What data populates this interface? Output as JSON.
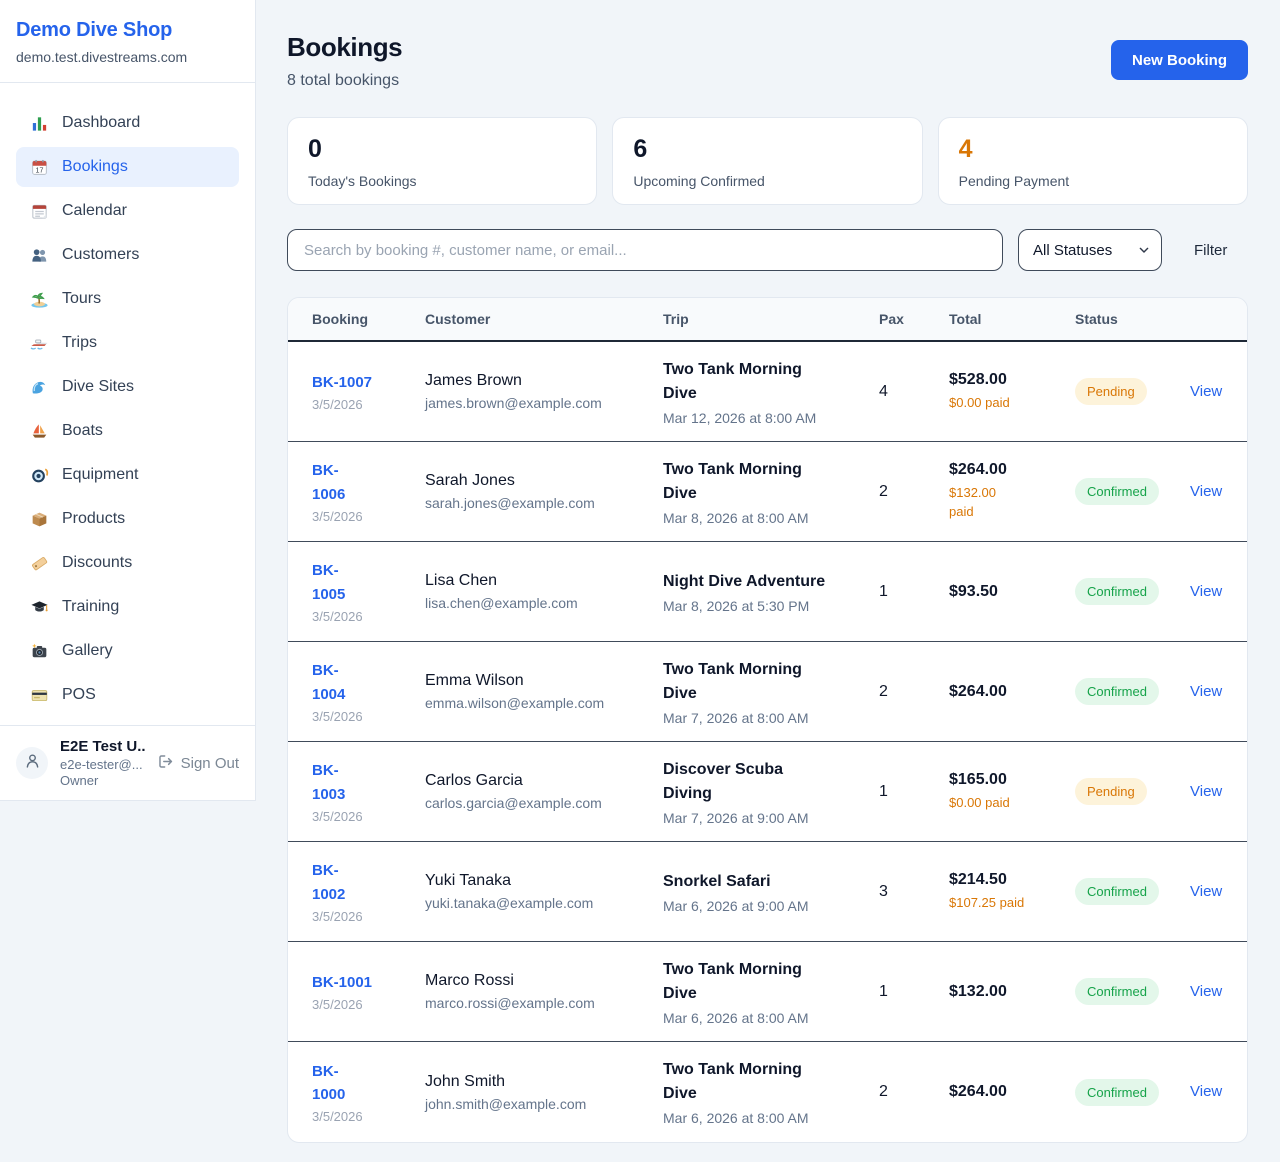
{
  "app": {
    "name": "Demo Dive Shop",
    "domain": "demo.test.divestreams.com"
  },
  "sidebar": {
    "items": [
      {
        "label": "Dashboard",
        "icon": "bar-chart",
        "active": false
      },
      {
        "label": "Bookings",
        "icon": "calendar-date",
        "active": true
      },
      {
        "label": "Calendar",
        "icon": "tearoff-calendar",
        "active": false
      },
      {
        "label": "Customers",
        "icon": "people",
        "active": false
      },
      {
        "label": "Tours",
        "icon": "island",
        "active": false
      },
      {
        "label": "Trips",
        "icon": "speedboat",
        "active": false
      },
      {
        "label": "Dive Sites",
        "icon": "wave",
        "active": false
      },
      {
        "label": "Boats",
        "icon": "sailboat",
        "active": false
      },
      {
        "label": "Equipment",
        "icon": "dive-mask",
        "active": false
      },
      {
        "label": "Products",
        "icon": "package",
        "active": false
      },
      {
        "label": "Discounts",
        "icon": "tag",
        "active": false
      },
      {
        "label": "Training",
        "icon": "grad-cap",
        "active": false
      },
      {
        "label": "Gallery",
        "icon": "camera",
        "active": false
      },
      {
        "label": "POS",
        "icon": "credit-card",
        "active": false
      }
    ],
    "user": {
      "name": "E2E Test U...",
      "email": "e2e-tester@...",
      "role": "Owner",
      "sign_out_label": "Sign Out"
    }
  },
  "header": {
    "title": "Bookings",
    "subtitle": "8 total bookings",
    "new_booking_label": "New Booking"
  },
  "stats": [
    {
      "value": "0",
      "label": "Today's Bookings",
      "accent": "dark"
    },
    {
      "value": "6",
      "label": "Upcoming Confirmed",
      "accent": "dark"
    },
    {
      "value": "4",
      "label": "Pending Payment",
      "accent": "orange"
    }
  ],
  "filters": {
    "search_placeholder": "Search by booking #, customer name, or email...",
    "status_selected": "All Statuses",
    "filter_label": "Filter"
  },
  "table": {
    "columns": [
      "Booking",
      "Customer",
      "Trip",
      "Pax",
      "Total",
      "Status",
      ""
    ],
    "view_label": "View",
    "rows": [
      {
        "number": "BK-1007",
        "number_split": false,
        "date": "3/5/2026",
        "customer": "James Brown",
        "email": "james.brown@example.com",
        "trip": "Two Tank Morning Dive",
        "trip_datetime": "Mar 12, 2026 at 8:00 AM",
        "pax": "4",
        "total": "$528.00",
        "paid": "$0.00 paid",
        "paid_split": false,
        "status": "Pending"
      },
      {
        "number": "BK-1006",
        "number_split": true,
        "date": "3/5/2026",
        "customer": "Sarah Jones",
        "email": "sarah.jones@example.com",
        "trip": "Two Tank Morning Dive",
        "trip_datetime": "Mar 8, 2026 at 8:00 AM",
        "pax": "2",
        "total": "$264.00",
        "paid": "$132.00 paid",
        "paid_split": true,
        "status": "Confirmed"
      },
      {
        "number": "BK-1005",
        "number_split": true,
        "date": "3/5/2026",
        "customer": "Lisa Chen",
        "email": "lisa.chen@example.com",
        "trip": "Night Dive Adventure",
        "trip_datetime": "Mar 8, 2026 at 5:30 PM",
        "pax": "1",
        "total": "$93.50",
        "paid": null,
        "paid_split": false,
        "status": "Confirmed"
      },
      {
        "number": "BK-1004",
        "number_split": true,
        "date": "3/5/2026",
        "customer": "Emma Wilson",
        "email": "emma.wilson@example.com",
        "trip": "Two Tank Morning Dive",
        "trip_datetime": "Mar 7, 2026 at 8:00 AM",
        "pax": "2",
        "total": "$264.00",
        "paid": null,
        "paid_split": false,
        "status": "Confirmed"
      },
      {
        "number": "BK-1003",
        "number_split": true,
        "date": "3/5/2026",
        "customer": "Carlos Garcia",
        "email": "carlos.garcia@example.com",
        "trip": "Discover Scuba Diving",
        "trip_datetime": "Mar 7, 2026 at 9:00 AM",
        "pax": "1",
        "total": "$165.00",
        "paid": "$0.00 paid",
        "paid_split": false,
        "status": "Pending"
      },
      {
        "number": "BK-1002",
        "number_split": true,
        "date": "3/5/2026",
        "customer": "Yuki Tanaka",
        "email": "yuki.tanaka@example.com",
        "trip": "Snorkel Safari",
        "trip_datetime": "Mar 6, 2026 at 9:00 AM",
        "pax": "3",
        "total": "$214.50",
        "paid": "$107.25 paid",
        "paid_split": false,
        "status": "Confirmed"
      },
      {
        "number": "BK-1001",
        "number_split": false,
        "date": "3/5/2026",
        "customer": "Marco Rossi",
        "email": "marco.rossi@example.com",
        "trip": "Two Tank Morning Dive",
        "trip_datetime": "Mar 6, 2026 at 8:00 AM",
        "pax": "1",
        "total": "$132.00",
        "paid": null,
        "paid_split": false,
        "status": "Confirmed"
      },
      {
        "number": "BK-1000",
        "number_split": true,
        "date": "3/5/2026",
        "customer": "John Smith",
        "email": "john.smith@example.com",
        "trip": "Two Tank Morning Dive",
        "trip_datetime": "Mar 6, 2026 at 8:00 AM",
        "pax": "2",
        "total": "$264.00",
        "paid": null,
        "paid_split": false,
        "status": "Confirmed"
      }
    ]
  },
  "colors": {
    "accent_blue": "#2563eb",
    "dark_text": "#0f172a",
    "muted_text": "#64748b",
    "orange": "#d97706",
    "green": "#16a34a",
    "pending_bg": "#fdf3da",
    "confirmed_bg": "#e3f7ea",
    "page_bg": "#f1f5f9",
    "active_nav_bg": "#e9f1fe"
  }
}
